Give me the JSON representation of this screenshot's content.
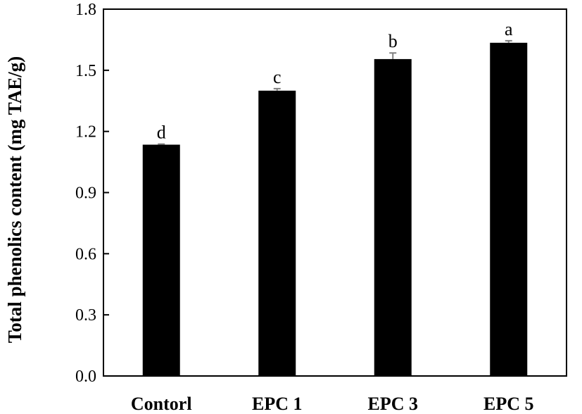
{
  "chart_data": {
    "type": "bar",
    "title": "",
    "xlabel": "",
    "ylabel": "Total phenolics content (mg TAE/g)",
    "ylim": [
      0,
      1.8
    ],
    "yticks": [
      "0.0",
      "0.3",
      "0.6",
      "0.9",
      "1.2",
      "1.5",
      "1.8"
    ],
    "grid": false,
    "legend": "none",
    "categories": [
      "Contorl",
      "EPC 1",
      "EPC 3",
      "EPC 5"
    ],
    "values": [
      1.135,
      1.4,
      1.555,
      1.635
    ],
    "errors": [
      0.003,
      0.01,
      0.03,
      0.01
    ],
    "significance_letters": [
      "d",
      "c",
      "b",
      "a"
    ],
    "bar_color": "#000000",
    "error_bar_color": "#808080"
  }
}
